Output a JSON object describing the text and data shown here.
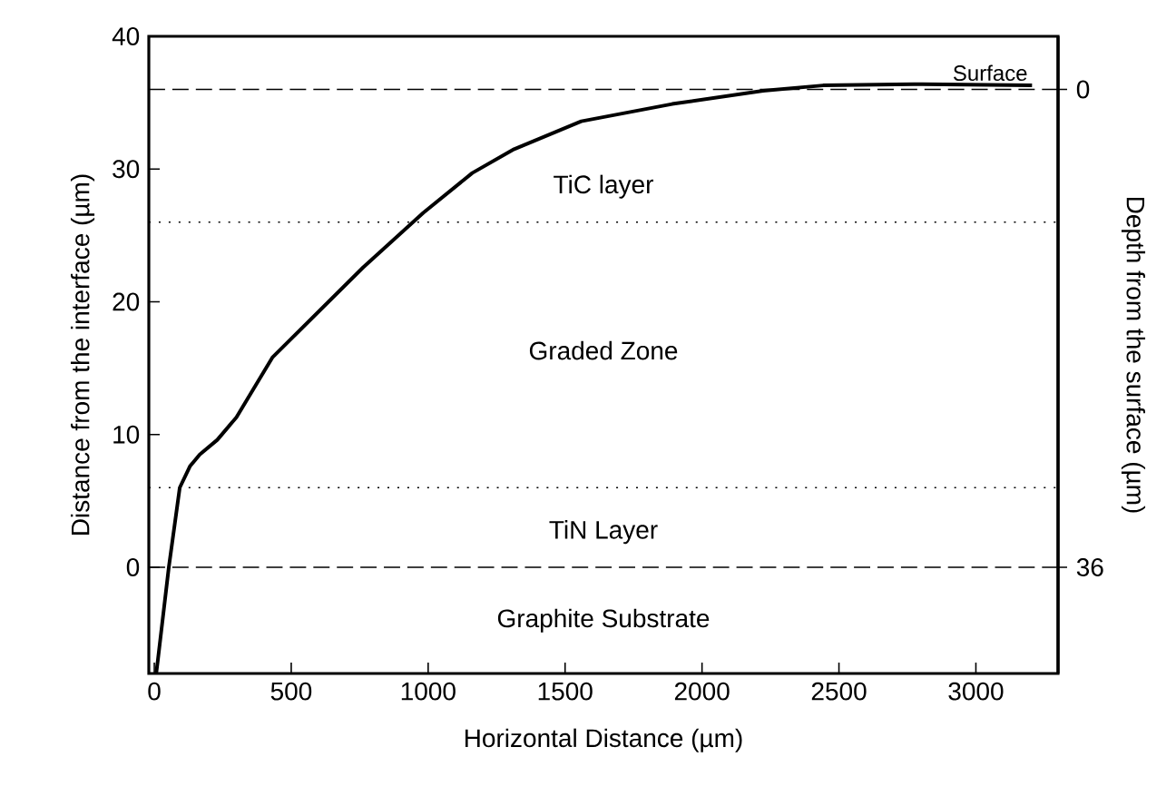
{
  "chart_data": {
    "type": "line",
    "xlabel": "Horizontal Distance (µm)",
    "ylabel": "Distance from the interface (µm)",
    "y2label": "Depth from the surface (µm)",
    "xlim": [
      -20,
      3300
    ],
    "xticks": [
      0,
      500,
      1000,
      1500,
      2000,
      2500,
      3000
    ],
    "ylim": [
      -8,
      40
    ],
    "yticks": [
      0,
      10,
      20,
      30,
      40
    ],
    "y2lim": [
      44,
      -4
    ],
    "y2ticks": [
      0,
      36
    ],
    "series": [
      {
        "color": "#000000",
        "x": [
          7,
          13,
          53,
          93,
          130,
          166,
          230,
          300,
          431,
          763,
          982,
          1161,
          1314,
          1559,
          1891,
          2223,
          2442,
          2774,
          3205
        ],
        "values": [
          -8,
          -7,
          0,
          6,
          7.6,
          8.5,
          9.6,
          11.3,
          15.8,
          22.6,
          26.7,
          29.7,
          31.5,
          33.6,
          34.9,
          35.9,
          36.3,
          36.4,
          36.3
        ]
      }
    ],
    "line_style": "solid",
    "ref_lines": [
      {
        "axis": "y",
        "value": 36,
        "label": "Surface",
        "line_style": "dashed"
      },
      {
        "axis": "y",
        "value": 26,
        "line_style": "dotted"
      },
      {
        "axis": "y",
        "value": 6,
        "line_style": "dotted"
      },
      {
        "axis": "y",
        "value": 0,
        "line_style": "dashed"
      }
    ],
    "annotations": [
      "TiC layer",
      "Graded Zone",
      "TiN Layer",
      "Graphite Substrate"
    ],
    "grid": false
  }
}
